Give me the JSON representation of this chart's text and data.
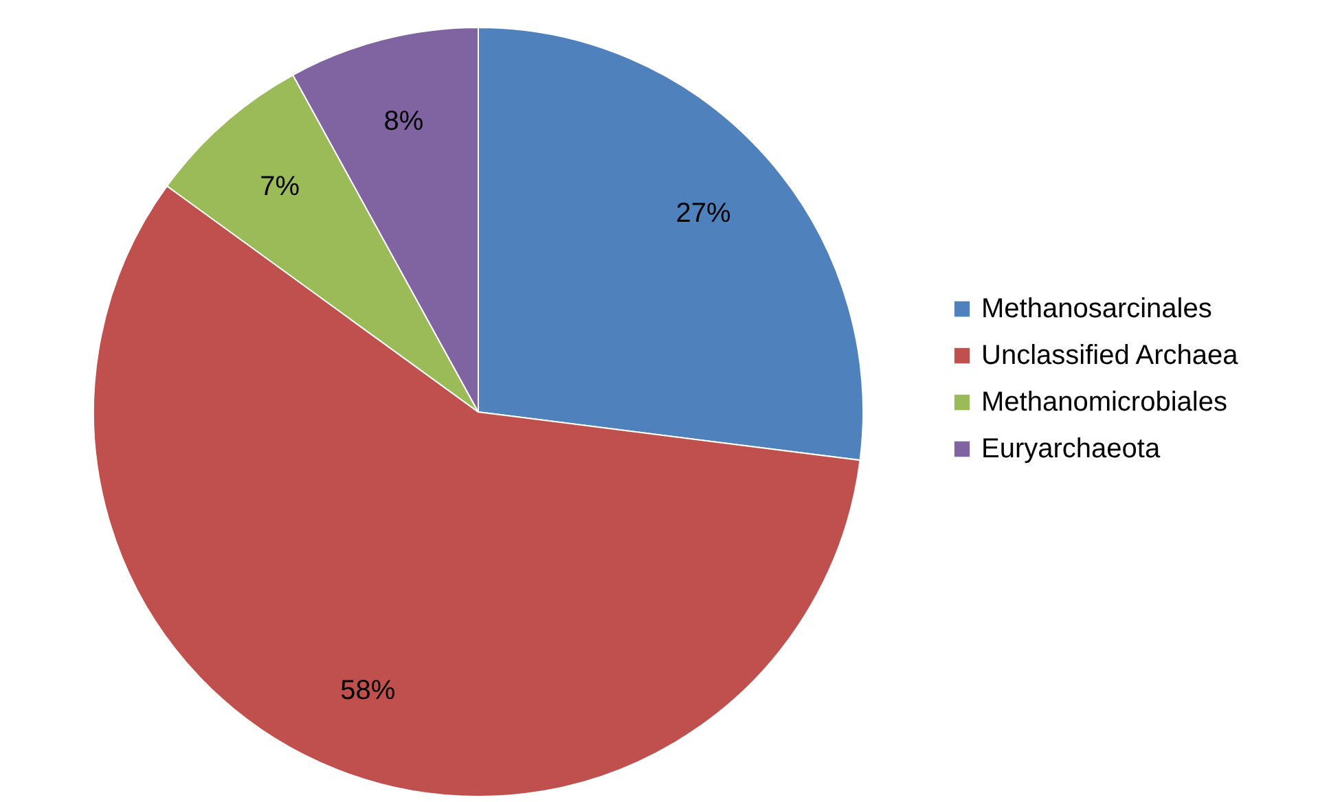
{
  "chart_data": {
    "type": "pie",
    "categories": [
      "Methanosarcinales",
      "Unclassified Archaea",
      "Methanomicrobiales",
      "Euryarchaeota"
    ],
    "values": [
      27,
      58,
      7,
      8
    ],
    "colors": [
      "#4f81bd",
      "#c0504d",
      "#9bbb59",
      "#8064a2"
    ],
    "value_labels": [
      "27%",
      "58%",
      "7%",
      "8%"
    ],
    "legend": "right"
  }
}
